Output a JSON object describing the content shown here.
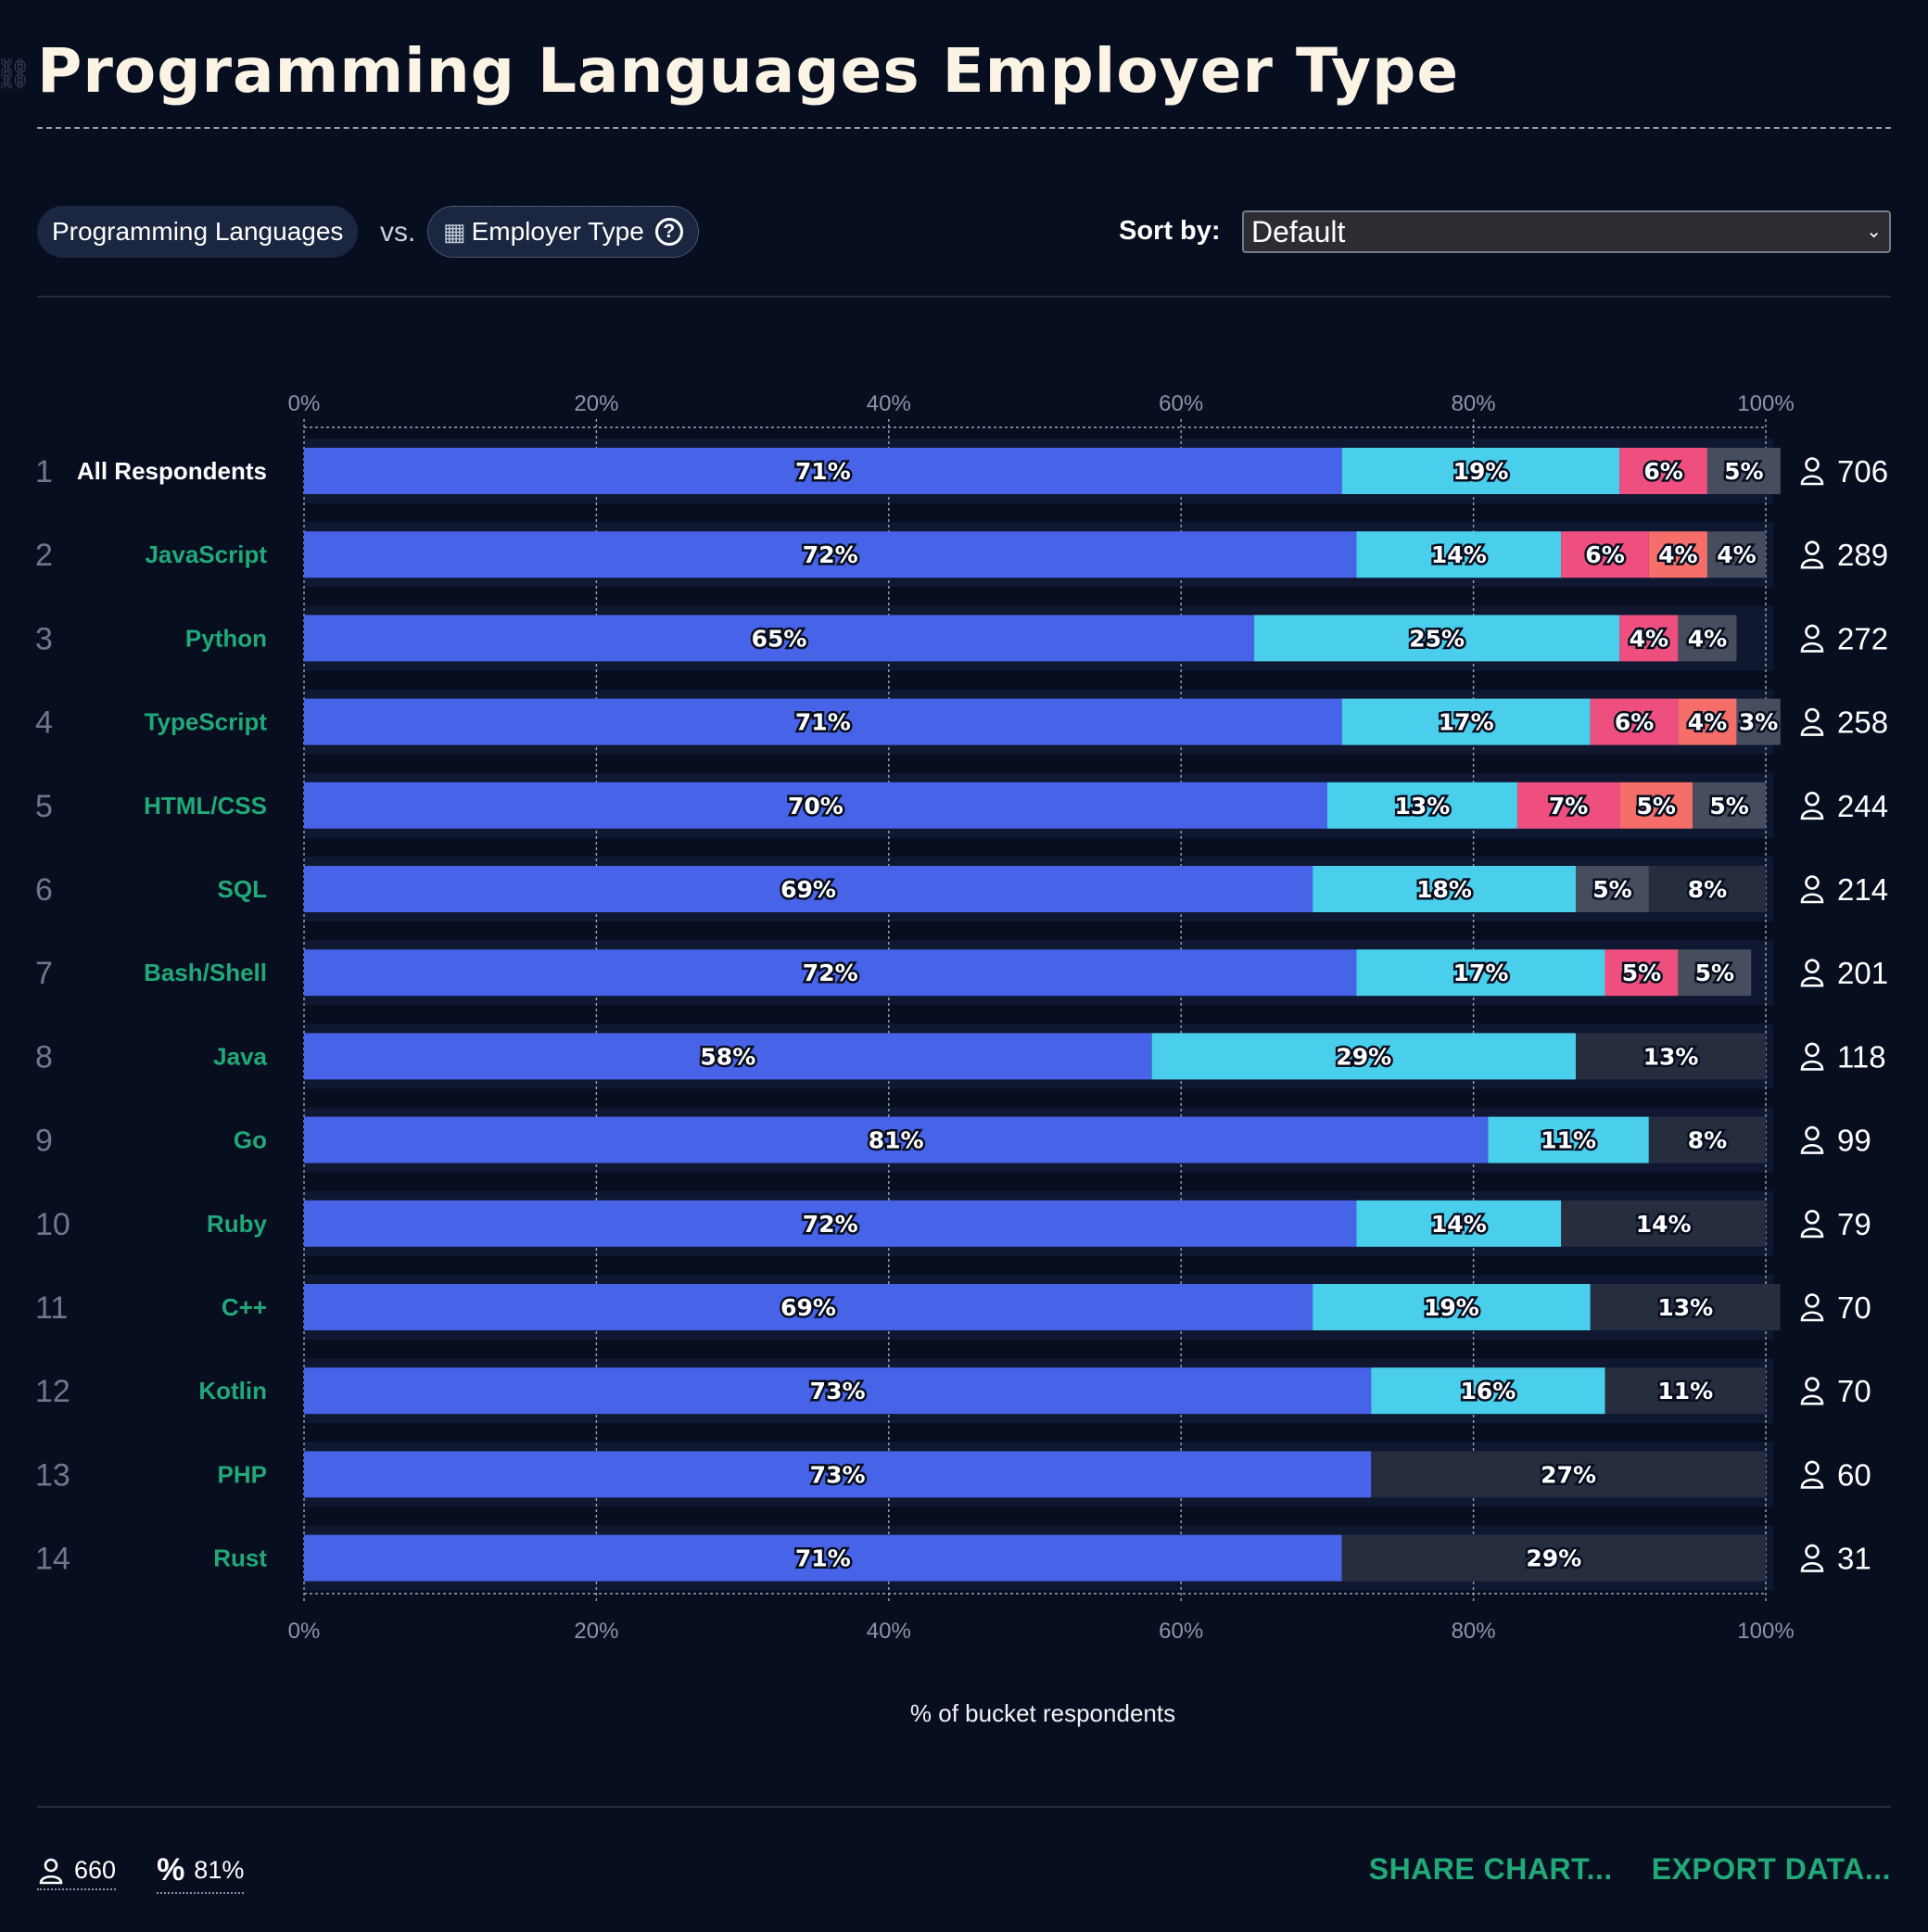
{
  "title": "Programming Languages Employer Type",
  "controls": {
    "x_dimension": "Programming Languages",
    "vs_label": "vs.",
    "y_dimension": "Employer Type",
    "sort_label": "Sort by:",
    "sort_value": "Default"
  },
  "colors": {
    "background": "#070e1f",
    "segment_1": "#4763e8",
    "segment_2": "#49cfec",
    "segment_3": "#ee4f7e",
    "segment_4": "#f56e6a",
    "segment_5": "#454d5e",
    "segment_rest": "#262d3e",
    "row_label_highlight": "#21a978",
    "action_link": "#21a978"
  },
  "chart_data": {
    "type": "bar",
    "orientation": "horizontal",
    "stacked": true,
    "xlabel": "% of bucket respondents",
    "xlim": [
      0,
      100
    ],
    "x_ticks": [
      "0%",
      "20%",
      "40%",
      "60%",
      "80%",
      "100%"
    ],
    "grid": true,
    "rows": [
      {
        "rank": "1",
        "label": "All Respondents",
        "count": "706",
        "segments": [
          71,
          19,
          6,
          0,
          5
        ]
      },
      {
        "rank": "2",
        "label": "JavaScript",
        "count": "289",
        "segments": [
          72,
          14,
          6,
          4,
          4
        ]
      },
      {
        "rank": "3",
        "label": "Python",
        "count": "272",
        "segments": [
          65,
          25,
          4,
          0,
          4
        ]
      },
      {
        "rank": "4",
        "label": "TypeScript",
        "count": "258",
        "segments": [
          71,
          17,
          6,
          4,
          3
        ]
      },
      {
        "rank": "5",
        "label": "HTML/CSS",
        "count": "244",
        "segments": [
          70,
          13,
          7,
          5,
          5
        ]
      },
      {
        "rank": "6",
        "label": "SQL",
        "count": "214",
        "segments": [
          69,
          18,
          0,
          0,
          5,
          8
        ]
      },
      {
        "rank": "7",
        "label": "Bash/Shell",
        "count": "201",
        "segments": [
          72,
          17,
          5,
          0,
          5
        ]
      },
      {
        "rank": "8",
        "label": "Java",
        "count": "118",
        "segments": [
          58,
          29,
          0,
          0,
          0,
          13
        ]
      },
      {
        "rank": "9",
        "label": "Go",
        "count": "99",
        "segments": [
          81,
          11,
          0,
          0,
          0,
          8
        ]
      },
      {
        "rank": "10",
        "label": "Ruby",
        "count": "79",
        "segments": [
          72,
          14,
          0,
          0,
          0,
          14
        ]
      },
      {
        "rank": "11",
        "label": "C++",
        "count": "70",
        "segments": [
          69,
          19,
          0,
          0,
          0,
          13
        ]
      },
      {
        "rank": "12",
        "label": "Kotlin",
        "count": "70",
        "segments": [
          73,
          16,
          0,
          0,
          0,
          11
        ]
      },
      {
        "rank": "13",
        "label": "PHP",
        "count": "60",
        "segments": [
          73,
          0,
          0,
          0,
          0,
          27
        ]
      },
      {
        "rank": "14",
        "label": "Rust",
        "count": "31",
        "segments": [
          71,
          0,
          0,
          0,
          0,
          29
        ]
      }
    ]
  },
  "footer": {
    "respondents": "660",
    "percent": "81%",
    "share_label": "SHARE CHART...",
    "export_label": "EXPORT DATA..."
  }
}
